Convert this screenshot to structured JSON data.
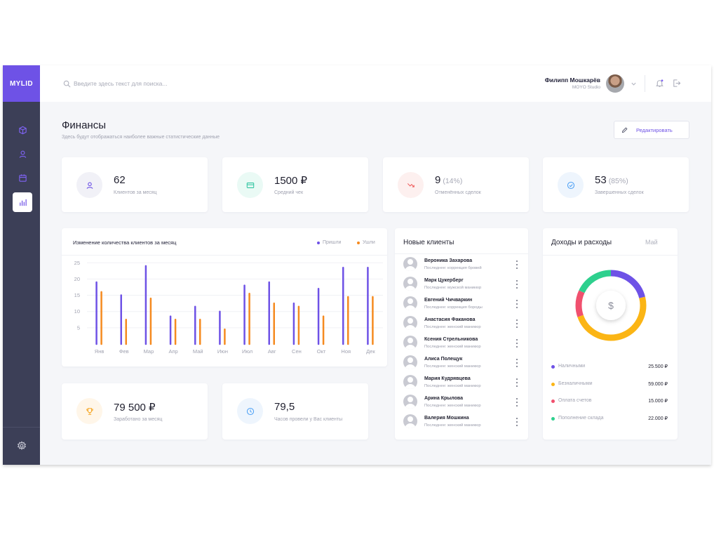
{
  "app": {
    "logo": "MYLID"
  },
  "search": {
    "placeholder": "Введите здесь текст для поиска..."
  },
  "user": {
    "name": "Филипп Мошкарёв",
    "company": "MOYO Studio"
  },
  "sidebar": {
    "items": [
      "cube-icon",
      "user-icon",
      "calendar-icon",
      "chart-icon"
    ],
    "active": "chart-icon",
    "bottom": "gear-icon"
  },
  "page": {
    "title": "Финансы",
    "subtitle": "Здесь будут отображаться наиболее важные статистические данные",
    "edit_label": "Редактировать"
  },
  "stats": [
    {
      "value": "62",
      "pct": "",
      "label": "Клиентов за месяц",
      "icon": "user-icon",
      "color": "#6e52e6"
    },
    {
      "value": "1500 ₽",
      "pct": "",
      "label": "Средний чек",
      "icon": "card-icon",
      "color": "#2ec4a0"
    },
    {
      "value": "9",
      "pct": "(14%)",
      "label": "Отменённых сделок",
      "icon": "trend-down-icon",
      "color": "#f05a5a"
    },
    {
      "value": "53",
      "pct": "(85%)",
      "label": "Завершенных сделок",
      "icon": "check-icon",
      "color": "#4a9ff5"
    }
  ],
  "bottom_stats": [
    {
      "value": "79 500 ₽",
      "label": "Заработано за месяц",
      "icon": "trophy-icon",
      "color": "#f5a623"
    },
    {
      "value": "79,5",
      "label": "Часов провели у Вас клиенты",
      "icon": "clock-icon",
      "color": "#4a9ff5"
    }
  ],
  "chart_data": {
    "type": "bar",
    "title": "Изменение количества клиентов за месяц",
    "categories": [
      "Янв",
      "Фев",
      "Мар",
      "Апр",
      "Май",
      "Июн",
      "Июл",
      "Авг",
      "Сен",
      "Окт",
      "Ноя",
      "Дек"
    ],
    "series": [
      {
        "name": "Пришли",
        "color": "#6e52e6",
        "values": [
          19,
          15,
          24,
          8.5,
          11.5,
          10,
          18,
          19,
          12.5,
          17,
          23.5,
          23.5
        ]
      },
      {
        "name": "Ушли",
        "color": "#f58a1f",
        "values": [
          16,
          7.5,
          14,
          7.5,
          7.5,
          4.5,
          15.5,
          12.5,
          11.5,
          8.5,
          14.5,
          14.5
        ]
      }
    ],
    "yticks": [
      5,
      10,
      15,
      20,
      25
    ],
    "ylim": [
      0,
      27
    ],
    "grid": true,
    "legend": "top-right"
  },
  "new_clients": {
    "title": "Новые клиенты",
    "items": [
      {
        "name": "Вероника Захарова",
        "info": "Последнее: коррекция бровей"
      },
      {
        "name": "Марк Цукерберг",
        "info": "Последнее: мужской маникюр"
      },
      {
        "name": "Евгений Чичваркин",
        "info": "Последнее: коррекция бороды"
      },
      {
        "name": "Анастасия Факанова",
        "info": "Последнее: женский маникюр"
      },
      {
        "name": "Ксения Стрельникова",
        "info": "Последнее: женский маникюр"
      },
      {
        "name": "Алиса Полещук",
        "info": "Последнее: женский маникюр"
      },
      {
        "name": "Мария Кудрявцева",
        "info": "Последнее: женский маникюр"
      },
      {
        "name": "Арина Крылова",
        "info": "Последнее: женский маникюр"
      },
      {
        "name": "Валерия Мошкина",
        "info": "Последнее: женский маникюр"
      }
    ]
  },
  "income": {
    "title": "Доходы и расходы",
    "month": "Май",
    "center_symbol": "$",
    "items": [
      {
        "label": "Наличными",
        "value": "25.500 ₽",
        "amount": 25500,
        "color": "#6e52e6"
      },
      {
        "label": "Безналичными",
        "value": "59.000 ₽",
        "amount": 59000,
        "color": "#fbb515"
      },
      {
        "label": "Оплата счетов",
        "value": "15.000 ₽",
        "amount": 15000,
        "color": "#f0506e"
      },
      {
        "label": "Пополнение склада",
        "value": "22.000 ₽",
        "amount": 22000,
        "color": "#2ed08e"
      }
    ]
  }
}
